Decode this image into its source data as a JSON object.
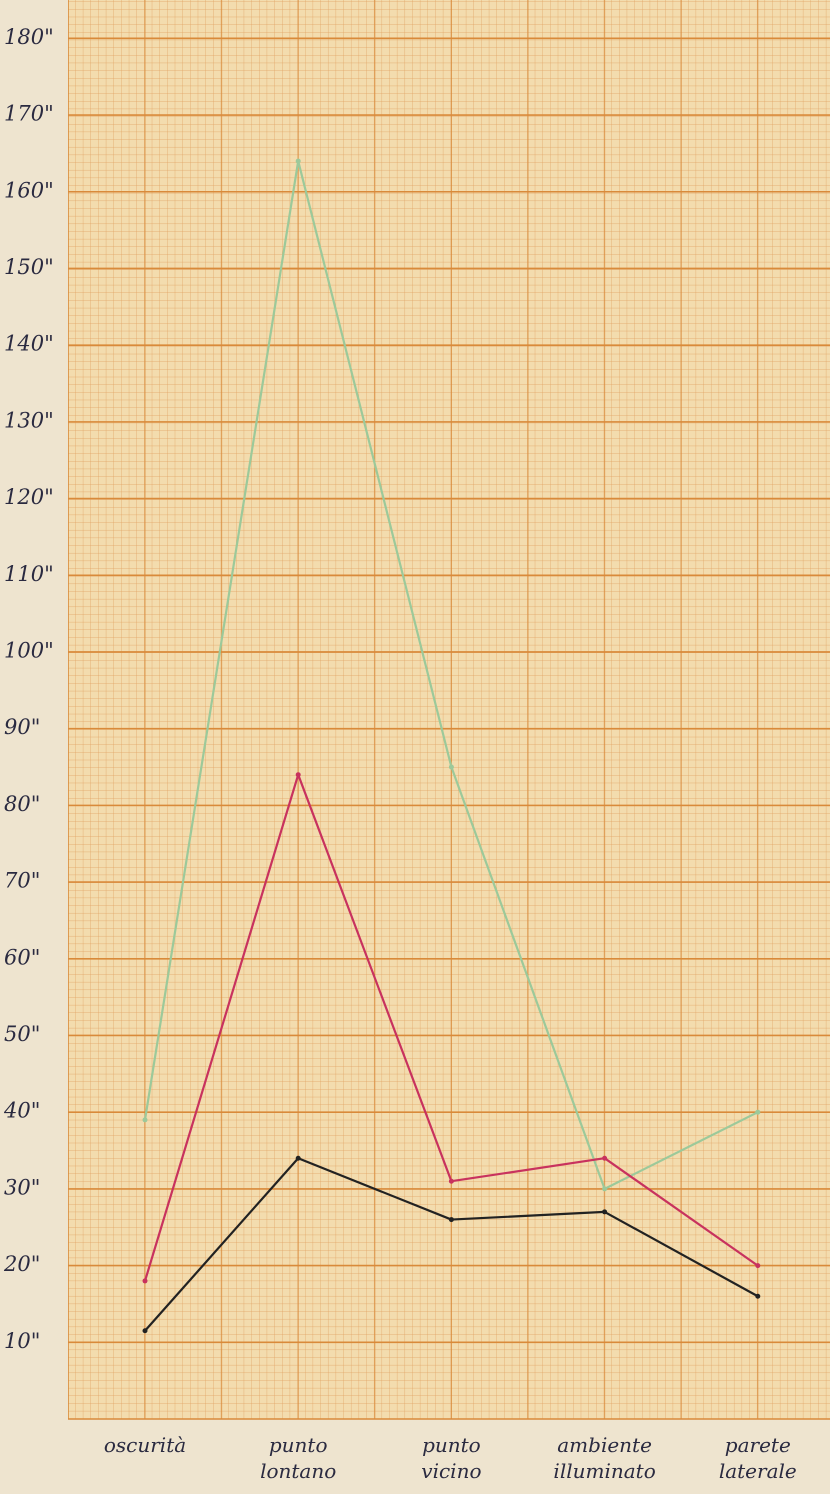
{
  "chart_data": {
    "type": "line",
    "categories": [
      "oscurità",
      "punto lontano",
      "punto vicino",
      "ambiente illuminato",
      "parete laterale"
    ],
    "series": [
      {
        "color": "#9cc99a",
        "values": [
          39,
          164,
          85,
          30,
          40
        ]
      },
      {
        "color": "#c8325e",
        "values": [
          18,
          84,
          31,
          34,
          20
        ]
      },
      {
        "color": "#222222",
        "values": [
          11.5,
          34,
          26,
          27,
          16
        ]
      }
    ],
    "ylim": [
      0,
      185
    ],
    "yticks": [
      {
        "value": 10,
        "label": "10\""
      },
      {
        "value": 20,
        "label": "20\""
      },
      {
        "value": 30,
        "label": "30\""
      },
      {
        "value": 40,
        "label": "40\""
      },
      {
        "value": 50,
        "label": "50\""
      },
      {
        "value": 60,
        "label": "60\""
      },
      {
        "value": 70,
        "label": "70\""
      },
      {
        "value": 80,
        "label": "80\""
      },
      {
        "value": 90,
        "label": "90\""
      },
      {
        "value": 100,
        "label": "100\""
      },
      {
        "value": 110,
        "label": "110\""
      },
      {
        "value": 120,
        "label": "120\""
      },
      {
        "value": 130,
        "label": "130\""
      },
      {
        "value": 140,
        "label": "140\""
      },
      {
        "value": 150,
        "label": "150\""
      },
      {
        "value": 160,
        "label": "160\""
      },
      {
        "value": 170,
        "label": "170\""
      },
      {
        "value": 180,
        "label": "180\""
      }
    ],
    "grid": true
  }
}
